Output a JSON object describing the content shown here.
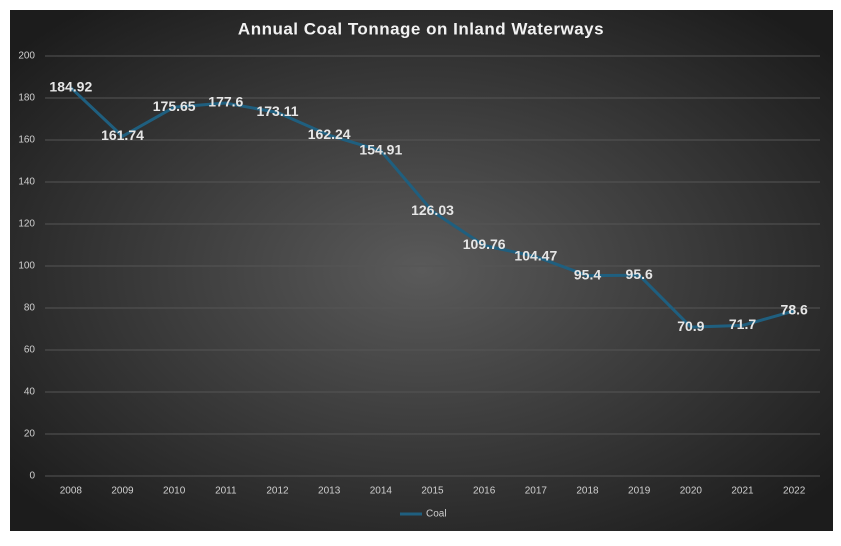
{
  "chart_data": {
    "type": "line",
    "title": "Annual Coal Tonnage on Inland Waterways",
    "categories": [
      "2008",
      "2009",
      "2010",
      "2011",
      "2012",
      "2013",
      "2014",
      "2015",
      "2016",
      "2017",
      "2018",
      "2019",
      "2020",
      "2021",
      "2022"
    ],
    "series": [
      {
        "name": "Coal",
        "color": "#1f5f7f",
        "values": [
          184.92,
          161.74,
          175.65,
          177.6,
          173.11,
          162.24,
          154.91,
          126.03,
          109.76,
          104.47,
          95.4,
          95.6,
          70.9,
          71.7,
          78.6
        ]
      }
    ],
    "ylim": [
      0,
      200
    ],
    "yticks": [
      0,
      20,
      40,
      60,
      80,
      100,
      120,
      140,
      160,
      180,
      200
    ],
    "grid": true,
    "legend": "bottom"
  }
}
